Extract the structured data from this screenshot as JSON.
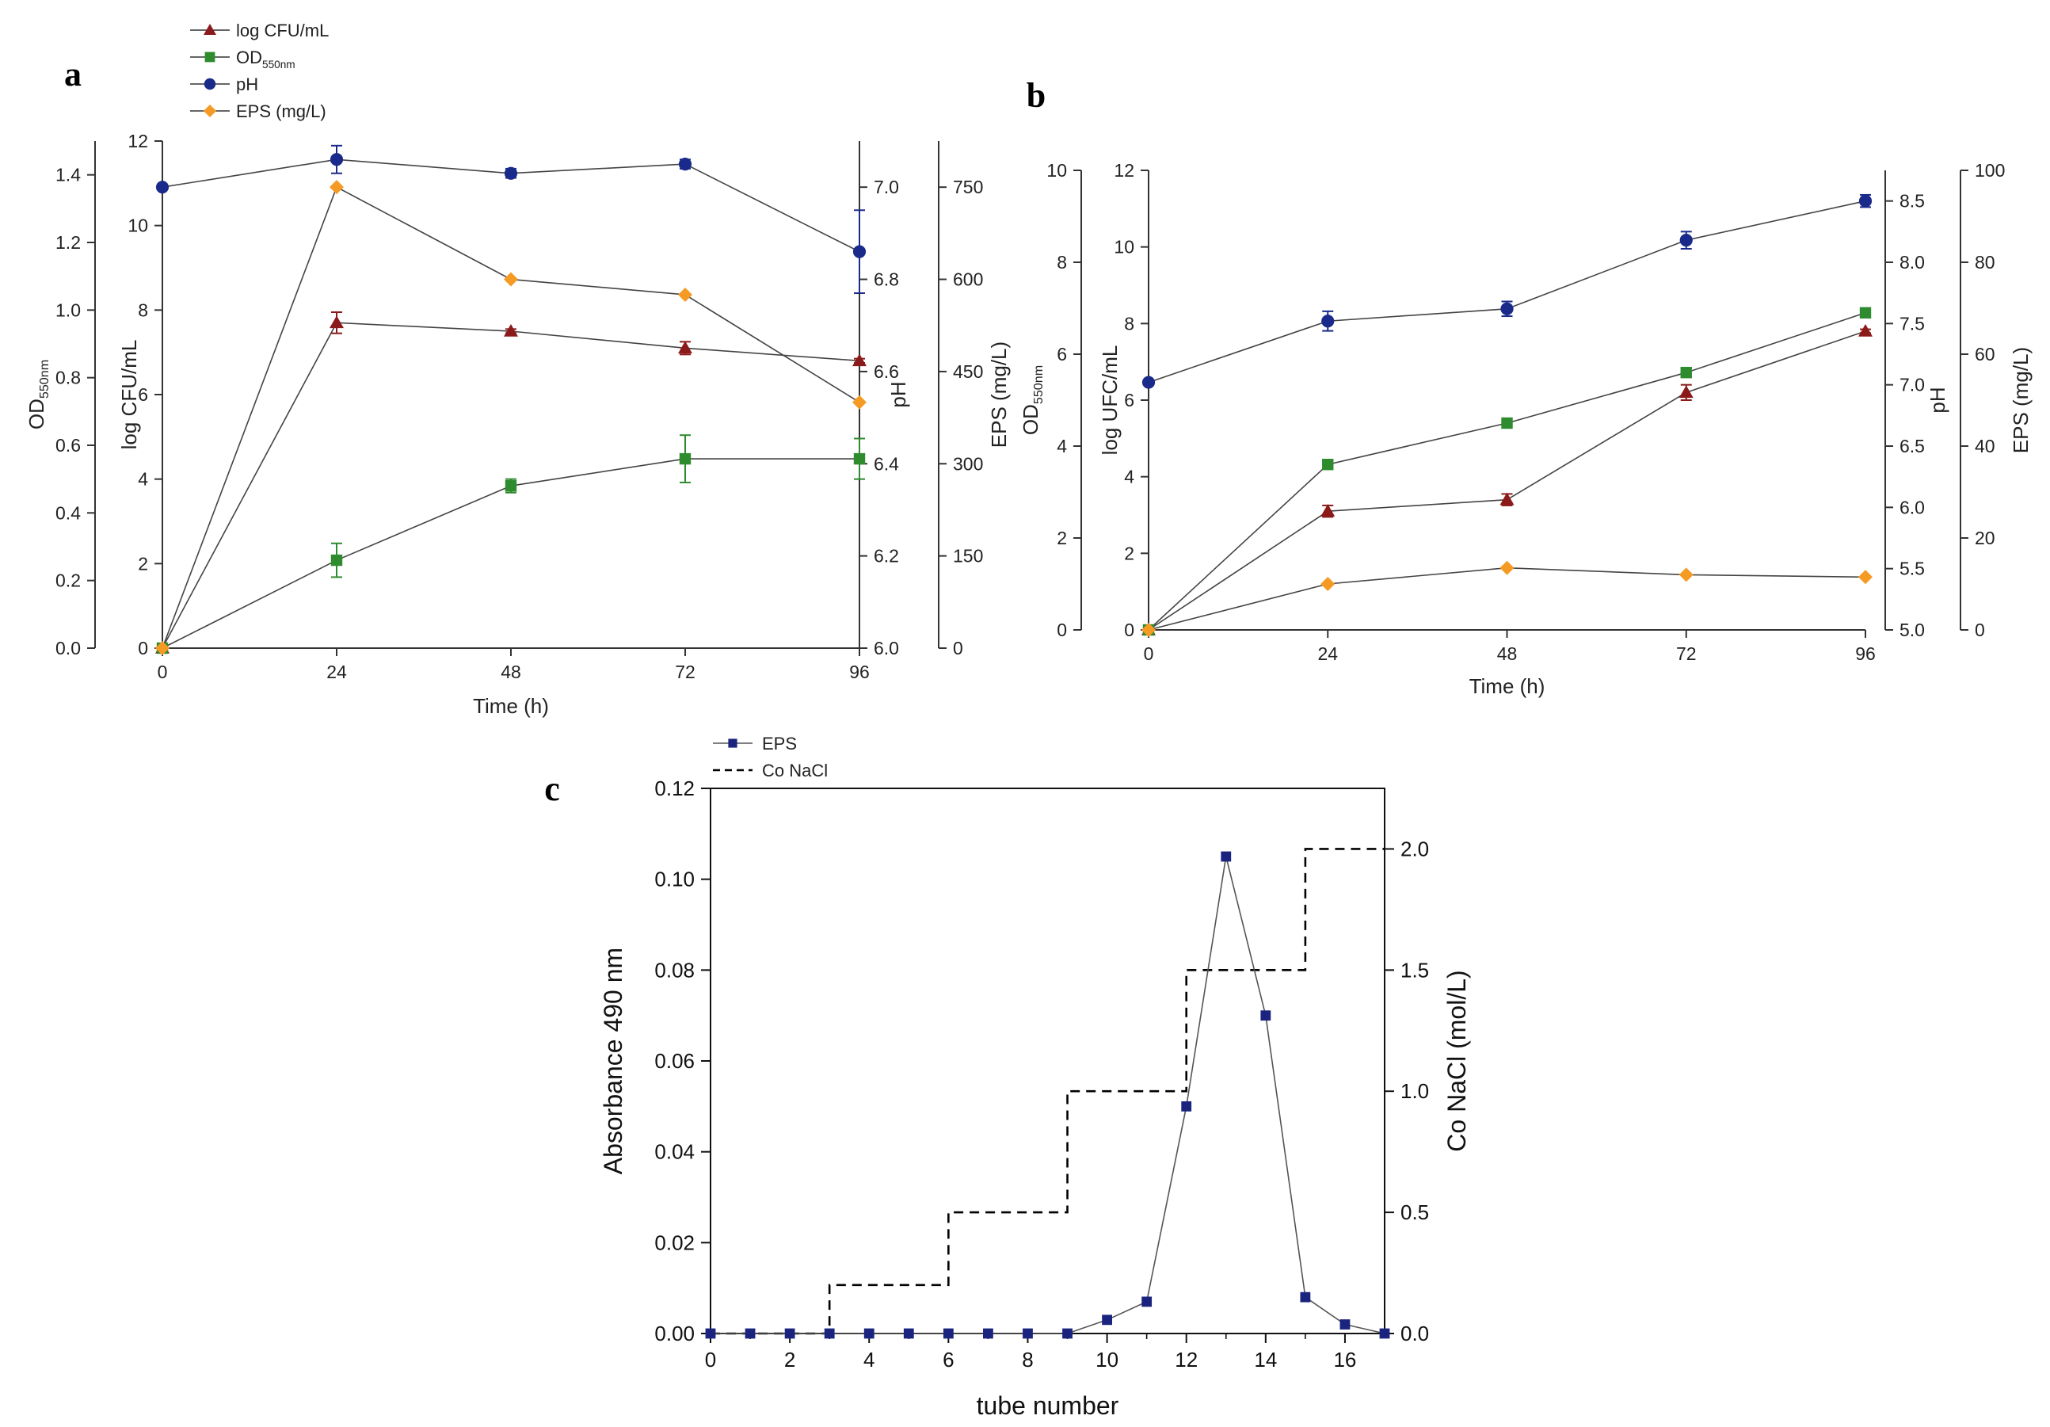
{
  "chart_data": [
    {
      "panel": "a",
      "type": "line",
      "xlabel": "Time (h)",
      "x": [
        0,
        24,
        48,
        72,
        96
      ],
      "xticks": [
        "0",
        "24",
        "48",
        "72",
        "96"
      ],
      "axes": [
        {
          "id": "od",
          "label": "OD550nm",
          "label_main": "OD",
          "label_sub": "550nm",
          "range": [
            0,
            1.5
          ],
          "ticks": [
            "0.0",
            "0.2",
            "0.4",
            "0.6",
            "0.8",
            "1.0",
            "1.2",
            "1.4"
          ],
          "tick_values": [
            0,
            0.2,
            0.4,
            0.6,
            0.8,
            1.0,
            1.2,
            1.4
          ]
        },
        {
          "id": "cfu",
          "label": "log CFU/mL",
          "range": [
            0,
            12
          ],
          "ticks": [
            "0",
            "2",
            "4",
            "6",
            "8",
            "10",
            "12"
          ],
          "tick_values": [
            0,
            2,
            4,
            6,
            8,
            10,
            12
          ]
        },
        {
          "id": "ph",
          "label": "pH",
          "range": [
            6.0,
            7.1
          ],
          "ticks": [
            "6.0",
            "6.2",
            "6.4",
            "6.6",
            "6.8",
            "7.0"
          ],
          "tick_values": [
            6.0,
            6.2,
            6.4,
            6.6,
            6.8,
            7.0
          ]
        },
        {
          "id": "eps",
          "label": "EPS (mg/L)",
          "range": [
            0,
            825
          ],
          "ticks": [
            "0",
            "150",
            "300",
            "450",
            "600",
            "750"
          ],
          "tick_values": [
            0,
            150,
            300,
            450,
            600,
            750
          ]
        }
      ],
      "series": [
        {
          "name": "log CFU/mL",
          "axis": "cfu",
          "marker": "triangle",
          "color": "#8b1a1a",
          "values": [
            0,
            7.7,
            7.5,
            7.1,
            6.8
          ],
          "err": [
            0,
            0.25,
            0.05,
            0.15,
            0.05
          ]
        },
        {
          "name": "OD550nm",
          "name_main": "OD",
          "name_sub": "550nm",
          "axis": "od",
          "marker": "square",
          "color": "#2e8b2e",
          "values": [
            0,
            0.26,
            0.48,
            0.56,
            0.56
          ],
          "err": [
            0,
            0.05,
            0.02,
            0.07,
            0.06
          ]
        },
        {
          "name": "pH",
          "axis": "ph",
          "marker": "circle",
          "color": "#1a2a8a",
          "values": [
            7.0,
            7.06,
            7.03,
            7.05,
            6.86
          ],
          "err": [
            0,
            0.03,
            0.01,
            0.01,
            0.09
          ]
        },
        {
          "name": "EPS (mg/L)",
          "axis": "eps",
          "marker": "diamond",
          "color": "#f59a23",
          "values": [
            0,
            750,
            600,
            575,
            400
          ],
          "err": [
            0,
            0,
            0,
            0,
            0
          ]
        }
      ]
    },
    {
      "panel": "b",
      "type": "line",
      "xlabel": "Time (h)",
      "x": [
        0,
        24,
        48,
        72,
        96
      ],
      "xticks": [
        "0",
        "24",
        "48",
        "72",
        "96"
      ],
      "axes": [
        {
          "id": "od",
          "label": "OD550nm",
          "label_main": "OD",
          "label_sub": "550nm",
          "range": [
            0,
            10
          ],
          "ticks": [
            "0",
            "2",
            "4",
            "6",
            "8",
            "10"
          ],
          "tick_values": [
            0,
            2,
            4,
            6,
            8,
            10
          ]
        },
        {
          "id": "ufc",
          "label": "log UFC/mL",
          "range": [
            0,
            12
          ],
          "ticks": [
            "0",
            "2",
            "4",
            "6",
            "8",
            "10",
            "12"
          ],
          "tick_values": [
            0,
            2,
            4,
            6,
            8,
            10,
            12
          ]
        },
        {
          "id": "ph",
          "label": "pH",
          "range": [
            5.0,
            8.75
          ],
          "ticks": [
            "5.0",
            "5.5",
            "6.0",
            "6.5",
            "7.0",
            "7.5",
            "8.0",
            "8.5"
          ],
          "tick_values": [
            5.0,
            5.5,
            6.0,
            6.5,
            7.0,
            7.5,
            8.0,
            8.5
          ]
        },
        {
          "id": "eps",
          "label": "EPS (mg/L)",
          "range": [
            0,
            100
          ],
          "ticks": [
            "0",
            "20",
            "40",
            "60",
            "80",
            "100"
          ],
          "tick_values": [
            0,
            20,
            40,
            60,
            80,
            100
          ]
        }
      ],
      "series": [
        {
          "name": "log UFC/mL",
          "axis": "ufc",
          "marker": "triangle",
          "color": "#8b1a1a",
          "values": [
            0,
            3.1,
            3.4,
            6.2,
            7.8
          ],
          "err": [
            0,
            0.15,
            0.15,
            0.2,
            0.05
          ]
        },
        {
          "name": "OD550nm",
          "axis": "od",
          "marker": "square",
          "color": "#2e8b2e",
          "values": [
            0,
            3.6,
            4.5,
            5.6,
            6.9
          ],
          "err": [
            0,
            0,
            0,
            0,
            0
          ]
        },
        {
          "name": "pH",
          "axis": "ph",
          "marker": "circle",
          "color": "#1a2a8a",
          "values": [
            7.02,
            7.52,
            7.62,
            8.18,
            8.5
          ],
          "err": [
            0,
            0.08,
            0.06,
            0.07,
            0.05
          ]
        },
        {
          "name": "EPS (mg/L)",
          "axis": "eps",
          "marker": "diamond",
          "color": "#f59a23",
          "values": [
            0,
            10,
            13.5,
            12,
            11.5
          ],
          "err": [
            0,
            0,
            0,
            0,
            0
          ]
        }
      ]
    },
    {
      "panel": "c",
      "type": "line",
      "xlabel": "tube number",
      "ylabel": "Absorbance 490 nm",
      "y2label": "Co NaCl (mol/L)",
      "xlim": [
        0,
        17
      ],
      "ylim": [
        0,
        0.12
      ],
      "y2lim": [
        0,
        2.25
      ],
      "xticks": [
        "0",
        "2",
        "4",
        "6",
        "8",
        "10",
        "12",
        "14",
        "16"
      ],
      "xtick_values": [
        0,
        2,
        4,
        6,
        8,
        10,
        12,
        14,
        16
      ],
      "yticks": [
        "0.00",
        "0.02",
        "0.04",
        "0.06",
        "0.08",
        "0.10",
        "0.12"
      ],
      "ytick_values": [
        0,
        0.02,
        0.04,
        0.06,
        0.08,
        0.1,
        0.12
      ],
      "y2ticks": [
        "0.0",
        "0.5",
        "1.0",
        "1.5",
        "2.0"
      ],
      "y2tick_values": [
        0,
        0.5,
        1.0,
        1.5,
        2.0
      ],
      "series": [
        {
          "name": "EPS",
          "axis": "left",
          "marker": "square",
          "color": "#1a237e",
          "x": [
            0,
            1,
            2,
            3,
            4,
            5,
            6,
            7,
            8,
            9,
            10,
            11,
            12,
            13,
            14,
            15,
            16,
            17
          ],
          "values": [
            0,
            0,
            0,
            0,
            0,
            0,
            0,
            0,
            0,
            0,
            0.003,
            0.007,
            0.05,
            0.105,
            0.07,
            0.008,
            0.002,
            0
          ]
        },
        {
          "name": "Co NaCl",
          "axis": "right",
          "style": "dashed-step",
          "color": "#000000",
          "steps": [
            [
              0,
              3,
              0
            ],
            [
              3,
              6,
              0.2
            ],
            [
              6,
              9,
              0.5
            ],
            [
              9,
              12,
              1.0
            ],
            [
              12,
              15,
              1.5
            ],
            [
              15,
              17,
              2.0
            ]
          ]
        }
      ]
    }
  ]
}
